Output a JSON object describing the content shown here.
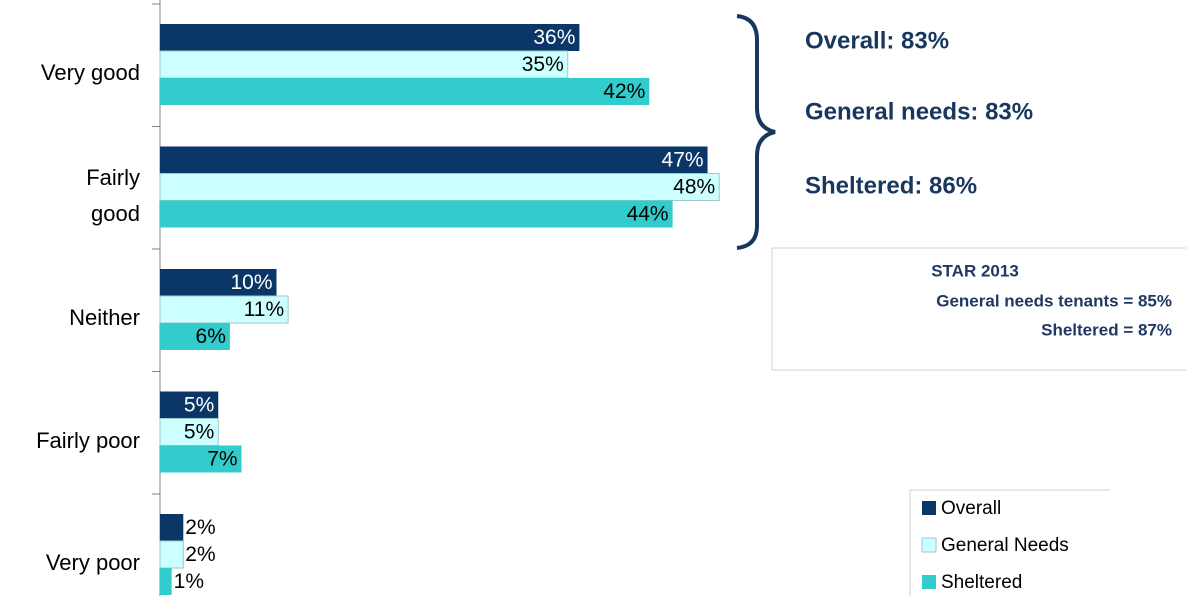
{
  "chart_data": {
    "type": "bar",
    "orientation": "horizontal",
    "categories": [
      "Very good",
      "Fairly\ngood",
      "Neither",
      "Fairly poor",
      "Very poor"
    ],
    "series": [
      {
        "name": "Overall",
        "color": "#0b3768",
        "values": [
          36,
          47,
          10,
          5,
          2
        ],
        "value_labels": [
          "36%",
          "47%",
          "10%",
          "5%",
          "2%"
        ]
      },
      {
        "name": "General Needs",
        "color": "#ccffff",
        "values": [
          35,
          48,
          11,
          5,
          2
        ],
        "value_labels": [
          "35%",
          "48%",
          "11%",
          "5%",
          "2%"
        ]
      },
      {
        "name": "Sheltered",
        "color": "#33cccc",
        "values": [
          42,
          44,
          6,
          7,
          1
        ],
        "value_labels": [
          "42%",
          "44%",
          "6%",
          "7%",
          "1%"
        ]
      }
    ],
    "annotations": [
      "Overall: 83%",
      "General needs: 83%",
      "Sheltered: 86%"
    ],
    "star_box": {
      "title": "STAR 2013",
      "lines": [
        "General needs tenants = 85%",
        "Sheltered = 87%"
      ]
    },
    "legend": "bottom-right"
  }
}
